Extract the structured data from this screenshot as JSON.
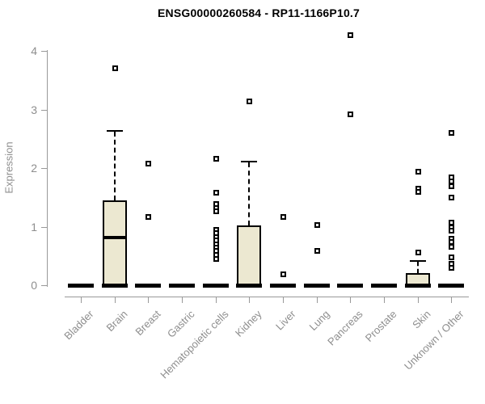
{
  "title": "ENSG00000260584 - RP11-1166P10.7",
  "colors": {
    "box_fill": "#ece8d1",
    "box_border": "#000000",
    "axis": "#999999",
    "axis_text": "#8e8e8e",
    "title_text": "#000000"
  },
  "chart_data": {
    "type": "boxplot",
    "title": "ENSG00000260584 - RP11-1166P10.7",
    "xlabel": "",
    "ylabel": "Expression",
    "ylim": [
      0,
      4.3
    ],
    "yticks": [
      0,
      1,
      2,
      3,
      4
    ],
    "grid": false,
    "legend": "none",
    "categories": [
      "Bladder",
      "Brain",
      "Breast",
      "Gastric",
      "Hematopoietic cells",
      "Kidney",
      "Liver",
      "Lung",
      "Pancreas",
      "Prostate",
      "Skin",
      "Unknown / Other"
    ],
    "series": [
      {
        "category": "Bladder",
        "q1": 0,
        "median": 0,
        "q3": 0,
        "whisker_high": 0,
        "outliers": []
      },
      {
        "category": "Brain",
        "q1": 0,
        "median": 0.81,
        "q3": 1.45,
        "whisker_high": 2.65,
        "outliers": [
          3.71
        ]
      },
      {
        "category": "Breast",
        "q1": 0,
        "median": 0,
        "q3": 0,
        "whisker_high": 0,
        "outliers": [
          2.08,
          1.17
        ]
      },
      {
        "category": "Gastric",
        "q1": 0,
        "median": 0,
        "q3": 0,
        "whisker_high": 0,
        "outliers": []
      },
      {
        "category": "Hematopoietic cells",
        "q1": 0,
        "median": 0,
        "q3": 0,
        "whisker_high": 0,
        "outliers": [
          2.17,
          1.58,
          1.39,
          1.33,
          1.27,
          0.95,
          0.89,
          0.83,
          0.77,
          0.71,
          0.65,
          0.59,
          0.52,
          0.46
        ]
      },
      {
        "category": "Kidney",
        "q1": 0,
        "median": 0,
        "q3": 1.02,
        "whisker_high": 2.13,
        "outliers": [
          3.15
        ]
      },
      {
        "category": "Liver",
        "q1": 0,
        "median": 0,
        "q3": 0,
        "whisker_high": 0,
        "outliers": [
          1.17,
          0.19
        ]
      },
      {
        "category": "Lung",
        "q1": 0,
        "median": 0,
        "q3": 0,
        "whisker_high": 0,
        "outliers": [
          1.04,
          0.6
        ]
      },
      {
        "category": "Pancreas",
        "q1": 0,
        "median": 0,
        "q3": 0,
        "whisker_high": 0,
        "outliers": [
          4.27,
          2.93
        ]
      },
      {
        "category": "Prostate",
        "q1": 0,
        "median": 0,
        "q3": 0,
        "whisker_high": 0,
        "outliers": []
      },
      {
        "category": "Skin",
        "q1": 0,
        "median": 0,
        "q3": 0.21,
        "whisker_high": 0.43,
        "outliers": [
          1.94,
          1.66,
          1.6,
          0.56
        ]
      },
      {
        "category": "Unknown / Other",
        "q1": 0,
        "median": 0,
        "q3": 0,
        "whisker_high": 0,
        "outliers": [
          2.61,
          1.85,
          1.78,
          1.7,
          1.5,
          1.07,
          0.99,
          0.94,
          0.8,
          0.74,
          0.66,
          0.48,
          0.37,
          0.31
        ]
      }
    ]
  }
}
